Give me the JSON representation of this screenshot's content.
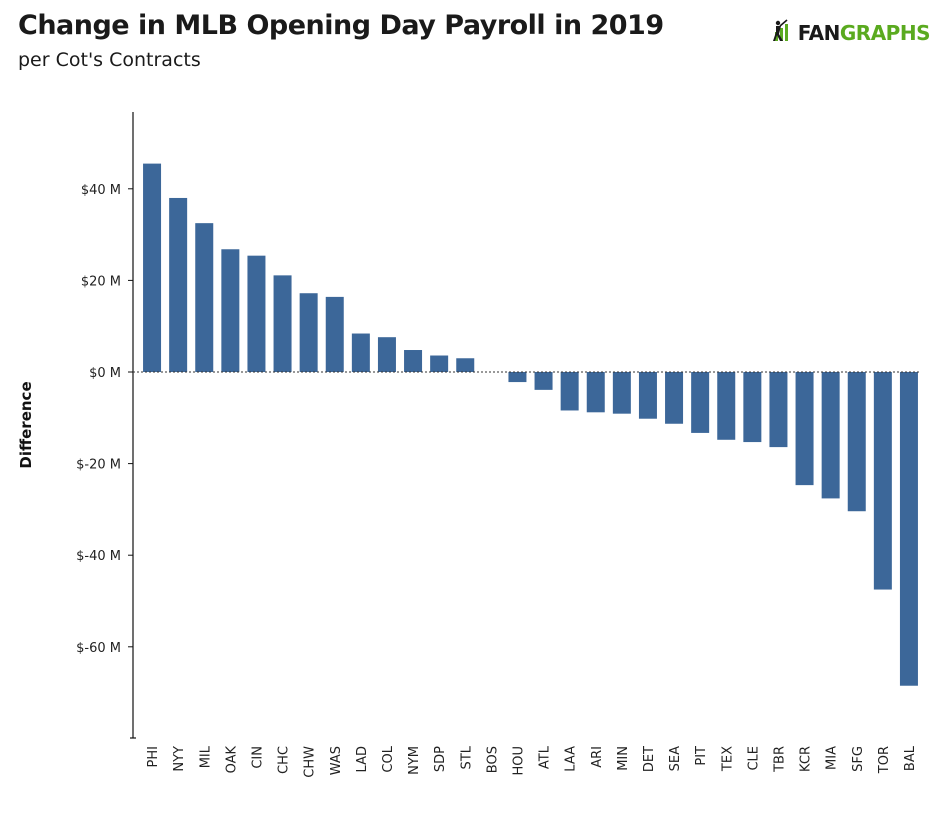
{
  "header": {
    "title": "Change in MLB Opening Day Payroll in 2019",
    "subtitle": "per Cot's Contracts"
  },
  "logo": {
    "icon": "batter-silhouette-icon",
    "text_fan": "FAN",
    "text_graphs": "GRAPHS",
    "accent_color": "#5aaa1f"
  },
  "chart_data": {
    "type": "bar",
    "ylabel": "Difference",
    "xlabel": "",
    "ylim": [
      -80,
      57
    ],
    "yticks": [
      40,
      20,
      0,
      -20,
      -40,
      -60
    ],
    "ytick_labels": [
      "$40 M",
      "$20 M",
      "$0 M",
      "$-20 M",
      "$-40 M",
      "$-60 M"
    ],
    "zero_line": "dotted",
    "grid": false,
    "bar_color": "#3c6799",
    "categories": [
      "PHI",
      "NYY",
      "MIL",
      "OAK",
      "CIN",
      "CHC",
      "CHW",
      "WAS",
      "LAD",
      "COL",
      "NYM",
      "SDP",
      "STL",
      "BOS",
      "HOU",
      "ATL",
      "LAA",
      "ARI",
      "MIN",
      "DET",
      "SEA",
      "PIT",
      "TEX",
      "CLE",
      "TBR",
      "KCR",
      "MIA",
      "SFG",
      "TOR",
      "BAL"
    ],
    "values": [
      45.5,
      38.0,
      32.5,
      26.8,
      25.4,
      21.1,
      17.2,
      16.4,
      8.4,
      7.6,
      4.8,
      3.6,
      3.0,
      0.0,
      -2.2,
      -3.9,
      -8.4,
      -8.8,
      -9.1,
      -10.2,
      -11.3,
      -13.3,
      -14.8,
      -15.3,
      -16.4,
      -24.7,
      -27.6,
      -30.4,
      -47.5,
      -68.5
    ]
  }
}
